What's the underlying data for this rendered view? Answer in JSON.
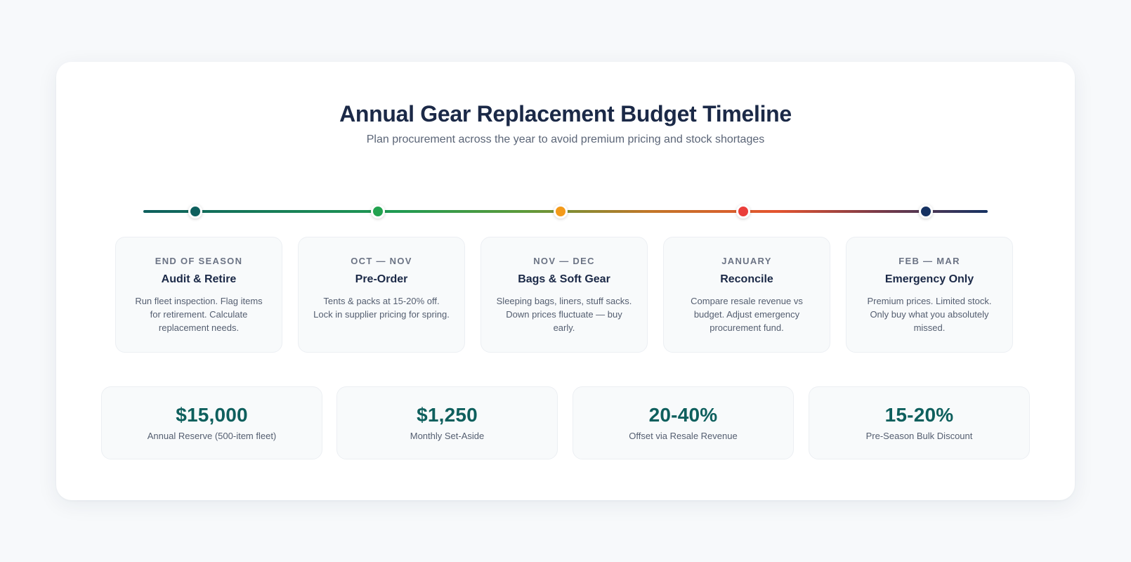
{
  "header": {
    "title": "Annual Gear Replacement Budget Timeline",
    "subtitle": "Plan procurement across the year to avoid premium pricing and stock shortages"
  },
  "timeline": {
    "gradient_colors": [
      "#0e5f5d",
      "#1f9a52",
      "#c27628",
      "#e4542f",
      "#163262"
    ],
    "phases": [
      {
        "period": "END OF SEASON",
        "title": "Audit & Retire",
        "description": "Run fleet inspection. Flag items for retirement. Calculate replacement needs.",
        "color": "#0e5f5d"
      },
      {
        "period": "OCT — NOV",
        "title": "Pre-Order",
        "description": "Tents & packs at 15-20% off. Lock in supplier pricing for spring.",
        "color": "#22a24f"
      },
      {
        "period": "NOV — DEC",
        "title": "Bags & Soft Gear",
        "description": "Sleeping bags, liners, stuff sacks. Down prices fluctuate — buy early.",
        "color": "#f39a1a"
      },
      {
        "period": "JANUARY",
        "title": "Reconcile",
        "description": "Compare resale revenue vs budget. Adjust emergency procurement fund.",
        "color": "#ea3e3a"
      },
      {
        "period": "FEB — MAR",
        "title": "Emergency Only",
        "description": "Premium prices. Limited stock. Only buy what you absolutely missed.",
        "color": "#163262"
      }
    ]
  },
  "stats": [
    {
      "value": "$15,000",
      "label": "Annual Reserve (500-item fleet)"
    },
    {
      "value": "$1,250",
      "label": "Monthly Set-Aside"
    },
    {
      "value": "20-40%",
      "label": "Offset via Resale Revenue"
    },
    {
      "value": "15-20%",
      "label": "Pre-Season Bulk Discount"
    }
  ],
  "colors": {
    "accent": "#0e5f5d",
    "title": "#1b2947",
    "muted": "#5b6577",
    "background": "#f7f9fb"
  }
}
